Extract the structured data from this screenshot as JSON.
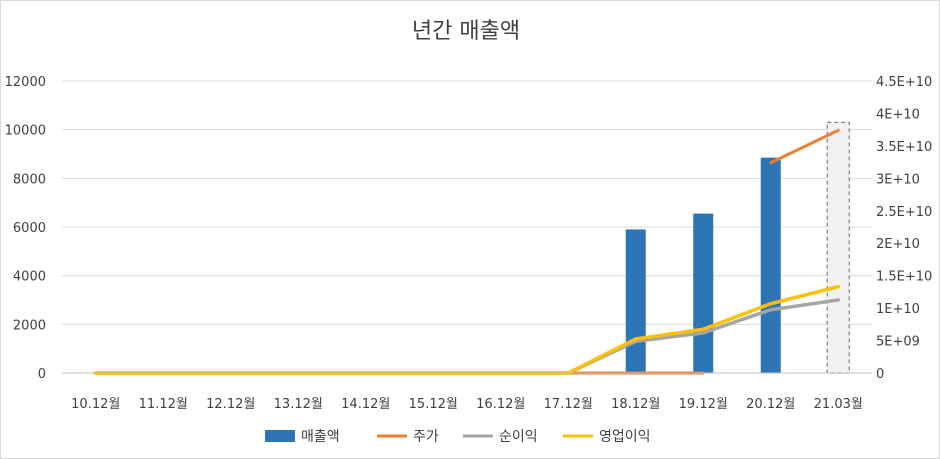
{
  "chart_data": {
    "type": "bar",
    "title": "년간 매출액",
    "categories": [
      "10.12월",
      "11.12월",
      "12.12월",
      "13.12월",
      "14.12월",
      "15.12월",
      "16.12월",
      "17.12월",
      "18.12월",
      "19.12월",
      "20.12월",
      "21.03월"
    ],
    "ylim": [
      0,
      12000
    ],
    "y_ticks": [
      "0",
      "2000",
      "4000",
      "6000",
      "8000",
      "10000",
      "12000"
    ],
    "y2lim": [
      0,
      45000000000
    ],
    "y2_ticks": [
      "0",
      "5E+09",
      "1E+10",
      "1.5E+10",
      "2E+10",
      "2.5E+10",
      "3E+10",
      "3.5E+10",
      "4E+10",
      "4.5E+10"
    ],
    "grid": true,
    "legend_position": "bottom",
    "series": [
      {
        "name": "매출액",
        "type": "bar",
        "axis": "primary",
        "color": "#2E75B6",
        "values": [
          0,
          0,
          0,
          0,
          0,
          0,
          0,
          0,
          5900,
          6550,
          8850,
          10300
        ]
      },
      {
        "name": "주가",
        "type": "line",
        "axis": "secondary",
        "color": "#ED7D31",
        "values": [
          null,
          null,
          null,
          null,
          null,
          null,
          null,
          0,
          0,
          0,
          32400000000,
          37400000000
        ]
      },
      {
        "name": "순이익",
        "type": "line",
        "axis": "primary",
        "color": "#A5A5A5",
        "values": [
          0,
          0,
          0,
          0,
          0,
          0,
          0,
          0,
          1300,
          1650,
          2600,
          3000
        ]
      },
      {
        "name": "영업이익",
        "type": "line",
        "axis": "primary",
        "color": "#FFC000",
        "values": [
          0,
          0,
          0,
          0,
          0,
          0,
          0,
          0,
          1400,
          1800,
          2850,
          3550
        ]
      }
    ]
  }
}
